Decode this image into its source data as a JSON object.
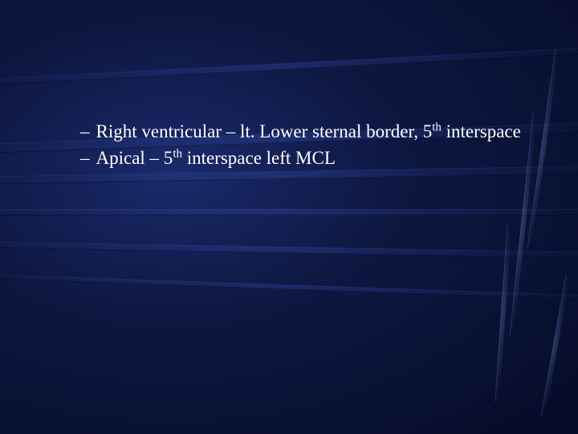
{
  "background": {
    "gradient_center": "#1a2a6c",
    "gradient_mid": "#0d1740",
    "gradient_edge": "#050b28"
  },
  "text_color": "#ffffff",
  "font_family": "Times New Roman",
  "font_size_pt": 18,
  "bullets": [
    {
      "dash": "–",
      "prefix": "Right ventricular – lt. Lower sternal border, 5",
      "sup": "th",
      "suffix": " interspace"
    },
    {
      "dash": "–",
      "prefix": "Apical – 5",
      "sup": "th",
      "suffix": " interspace left MCL"
    }
  ]
}
